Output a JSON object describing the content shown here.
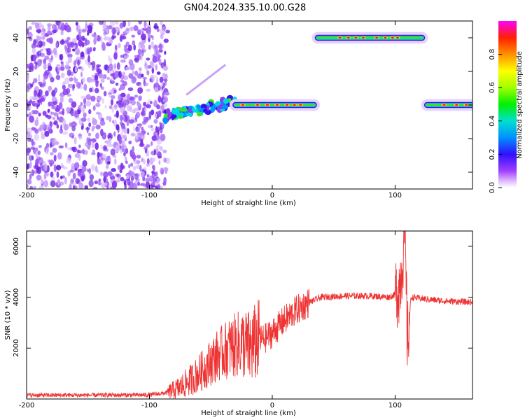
{
  "title": "GN04.2024.335.10.00.G28",
  "colors": {
    "snr_line": "#ee3333",
    "spectro_low": "#8a2be2",
    "spectro_high": "#ff0000"
  },
  "chart_data": [
    {
      "type": "heatmap",
      "title": "GN04.2024.335.10.00.G28",
      "xlabel": "Height of straight line (km)",
      "ylabel": "Frequency (Hz)",
      "xlim": [
        -200,
        163
      ],
      "ylim": [
        -50,
        50
      ],
      "xticks": [
        -200,
        -100,
        0,
        100
      ],
      "yticks": [
        -40,
        -20,
        0,
        20,
        40
      ],
      "colorbar": {
        "label": "Normalized spectral amplitude",
        "range": [
          0,
          1
        ],
        "ticks": [
          "0.0",
          "0.2",
          "0.4",
          "0.6",
          "0.8"
        ]
      },
      "features": [
        {
          "name": "noise",
          "x": [
            -200,
            -85
          ],
          "freq": [
            -50,
            50
          ],
          "level": 0.12
        },
        {
          "name": "ramp",
          "x": [
            -88,
            -30
          ],
          "freq": [
            -8,
            4
          ],
          "level": 0.45
        },
        {
          "name": "band_low_mid",
          "x": [
            -30,
            36
          ],
          "freq": [
            0,
            0
          ],
          "level": 0.7
        },
        {
          "name": "band_high",
          "x": [
            35,
            125
          ],
          "freq": [
            40,
            40
          ],
          "level": 0.75
        },
        {
          "name": "band_low_right",
          "x": [
            124,
            163
          ],
          "freq": [
            0,
            0
          ],
          "level": 0.9
        }
      ]
    },
    {
      "type": "line",
      "xlabel": "Height of straight line (km)",
      "ylabel": "SNR (10 * v/v)",
      "xlim": [
        -200,
        163
      ],
      "ylim": [
        0,
        6600
      ],
      "xticks": [
        -200,
        -100,
        0,
        100
      ],
      "yticks": [
        2000,
        4000,
        6000
      ],
      "series": [
        {
          "x": [
            -200,
            -150,
            -100,
            -85,
            -75,
            -65,
            -55,
            -45,
            -35,
            -25,
            -18,
            -12,
            -5,
            0,
            10,
            20,
            30,
            40,
            60,
            80,
            95,
            100,
            104,
            106,
            108,
            110,
            113,
            120,
            140,
            163
          ],
          "y": [
            150,
            150,
            160,
            250,
            450,
            800,
            1200,
            1700,
            2000,
            2200,
            2000,
            2300,
            2400,
            2600,
            3100,
            3500,
            3800,
            4000,
            4050,
            4050,
            4000,
            4100,
            4500,
            5500,
            6600,
            2200,
            4000,
            3950,
            3850,
            3800
          ]
        }
      ]
    }
  ]
}
